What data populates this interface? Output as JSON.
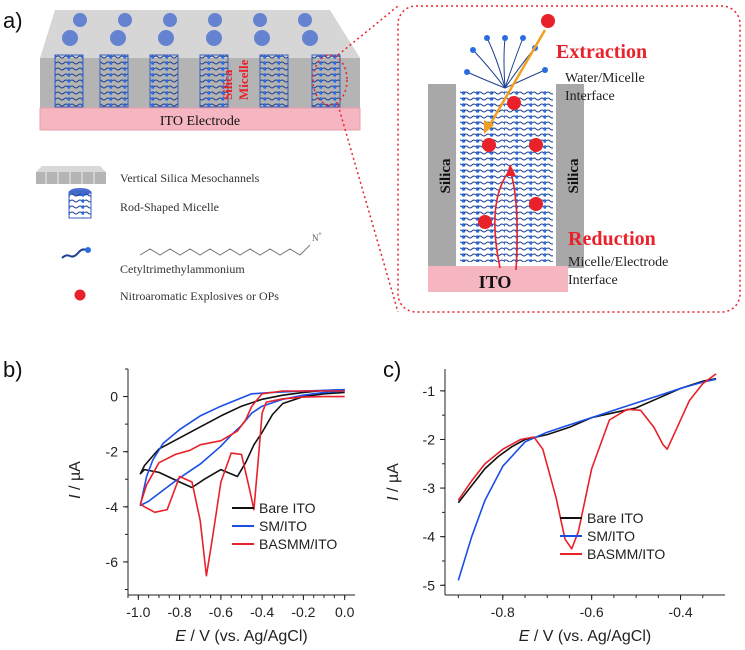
{
  "panel_a": {
    "letter": "a)",
    "schematic_labels": {
      "electrode": "ITO Electrode",
      "silica": "Silica",
      "micelle": "Micelle"
    },
    "legend": [
      {
        "icon": "silica-mesochannel-icon",
        "label": "Vertical Silica Mesochannels"
      },
      {
        "icon": "rod-micelle-icon",
        "label": "Rod-Shaped Micelle"
      },
      {
        "icon": "ctab-molecule-icon",
        "label": "Cetyltrimethylammonium"
      },
      {
        "icon": "red-dot-icon",
        "label": "Nitroaromatic Explosives or OPs"
      }
    ],
    "zoom": {
      "extraction": "Extraction",
      "water_interface_1": "Water/Micelle",
      "water_interface_2": "Interface",
      "reduction": "Reduction",
      "electrode_interface_1": "Micelle/Electrode",
      "electrode_interface_2": "Interface",
      "silica_left": "Silica",
      "silica_right": "Silica",
      "ito": "ITO"
    },
    "colors": {
      "accent_red": "#e8212a",
      "pink": "#f8b9c2",
      "silica_gray": "#a8a8a8",
      "chain_blue": "#1f3f8f",
      "arrow_orange": "#f0a020"
    }
  },
  "chart_data": [
    {
      "panel": "b)",
      "type": "line",
      "xlabel_italic": "E",
      "xlabel_rest": " / V (vs. Ag/AgCl)",
      "ylabel_italic": "I",
      "ylabel_rest": " / µA",
      "xlim": [
        -1.05,
        0.05
      ],
      "ylim": [
        -7.2,
        1.0
      ],
      "xticks": [
        -1.0,
        -0.8,
        -0.6,
        -0.4,
        -0.2,
        0.0
      ],
      "xtick_labels": [
        "-1.0",
        "-0.8",
        "-0.6",
        "-0.4",
        "-0.2",
        "0.0"
      ],
      "yticks": [
        0,
        -2,
        -4,
        -6
      ],
      "ytick_labels": [
        "0",
        "-2",
        "-4",
        "-6"
      ],
      "series": [
        {
          "name": "Bare ITO",
          "color": "#111111",
          "points": [
            [
              0.0,
              0.25
            ],
            [
              -0.1,
              0.22
            ],
            [
              -0.2,
              0.15
            ],
            [
              -0.3,
              0.05
            ],
            [
              -0.4,
              -0.1
            ],
            [
              -0.5,
              -0.35
            ],
            [
              -0.6,
              -0.7
            ],
            [
              -0.7,
              -1.1
            ],
            [
              -0.8,
              -1.5
            ],
            [
              -0.9,
              -1.9
            ],
            [
              -0.97,
              -2.5
            ],
            [
              -0.99,
              -2.8
            ],
            [
              -0.97,
              -2.65
            ],
            [
              -0.9,
              -2.75
            ],
            [
              -0.8,
              -3.1
            ],
            [
              -0.74,
              -3.3
            ],
            [
              -0.68,
              -3.0
            ],
            [
              -0.6,
              -2.65
            ],
            [
              -0.52,
              -2.9
            ],
            [
              -0.48,
              -2.4
            ],
            [
              -0.44,
              -1.75
            ],
            [
              -0.4,
              -1.3
            ],
            [
              -0.35,
              -0.65
            ],
            [
              -0.3,
              -0.25
            ],
            [
              -0.2,
              0.0
            ],
            [
              -0.1,
              0.1
            ],
            [
              0.0,
              0.15
            ]
          ]
        },
        {
          "name": "SM/ITO",
          "color": "#1a4ee6",
          "points": [
            [
              0.0,
              0.25
            ],
            [
              -0.2,
              0.2
            ],
            [
              -0.35,
              0.15
            ],
            [
              -0.45,
              0.1
            ],
            [
              -0.5,
              -0.05
            ],
            [
              -0.6,
              -0.35
            ],
            [
              -0.7,
              -0.7
            ],
            [
              -0.8,
              -1.2
            ],
            [
              -0.88,
              -1.7
            ],
            [
              -0.93,
              -2.3
            ],
            [
              -0.96,
              -2.9
            ],
            [
              -0.98,
              -3.6
            ],
            [
              -0.99,
              -3.95
            ],
            [
              -0.95,
              -3.8
            ],
            [
              -0.88,
              -3.4
            ],
            [
              -0.8,
              -2.95
            ],
            [
              -0.7,
              -2.45
            ],
            [
              -0.6,
              -1.8
            ],
            [
              -0.55,
              -1.4
            ],
            [
              -0.5,
              -1.05
            ],
            [
              -0.45,
              -0.6
            ],
            [
              -0.4,
              -0.35
            ],
            [
              -0.3,
              -0.1
            ],
            [
              -0.2,
              0.05
            ],
            [
              -0.1,
              0.15
            ],
            [
              0.0,
              0.2
            ]
          ]
        },
        {
          "name": "BASMM/ITO",
          "color": "#e8212a",
          "points": [
            [
              0.0,
              0.0
            ],
            [
              -0.1,
              0.0
            ],
            [
              -0.2,
              -0.02
            ],
            [
              -0.3,
              -0.08
            ],
            [
              -0.38,
              -0.2
            ],
            [
              -0.4,
              -0.6
            ],
            [
              -0.42,
              -2.4
            ],
            [
              -0.44,
              -4.1
            ],
            [
              -0.46,
              -3.4
            ],
            [
              -0.5,
              -2.1
            ],
            [
              -0.55,
              -2.05
            ],
            [
              -0.6,
              -3.1
            ],
            [
              -0.64,
              -5.1
            ],
            [
              -0.67,
              -6.5
            ],
            [
              -0.7,
              -4.5
            ],
            [
              -0.74,
              -3.1
            ],
            [
              -0.8,
              -2.9
            ],
            [
              -0.86,
              -4.1
            ],
            [
              -0.92,
              -4.2
            ],
            [
              -0.97,
              -4.0
            ],
            [
              -0.99,
              -3.9
            ],
            [
              -0.96,
              -3.2
            ],
            [
              -0.9,
              -2.4
            ],
            [
              -0.82,
              -2.1
            ],
            [
              -0.75,
              -1.95
            ],
            [
              -0.7,
              -1.75
            ],
            [
              -0.6,
              -1.6
            ],
            [
              -0.52,
              -1.25
            ],
            [
              -0.48,
              -0.85
            ],
            [
              -0.45,
              -0.35
            ],
            [
              -0.4,
              0.1
            ],
            [
              -0.3,
              0.2
            ],
            [
              -0.2,
              0.2
            ],
            [
              -0.1,
              0.2
            ],
            [
              0.0,
              0.2
            ]
          ]
        }
      ]
    },
    {
      "panel": "c)",
      "type": "line",
      "xlabel_italic": "E",
      "xlabel_rest": " / V (vs. Ag/AgCl)",
      "ylabel_italic": "I",
      "ylabel_rest": " / µA",
      "xlim": [
        -0.93,
        -0.3
      ],
      "ylim": [
        -5.2,
        -0.55
      ],
      "xticks": [
        -0.8,
        -0.6,
        -0.4
      ],
      "xtick_labels": [
        "-0.8",
        "-0.6",
        "-0.4"
      ],
      "yticks": [
        -1,
        -2,
        -3,
        -4,
        -5
      ],
      "ytick_labels": [
        "-1",
        "-2",
        "-3",
        "-4",
        "-5"
      ],
      "series": [
        {
          "name": "Bare ITO",
          "color": "#111111",
          "points": [
            [
              -0.9,
              -3.3
            ],
            [
              -0.87,
              -2.95
            ],
            [
              -0.84,
              -2.6
            ],
            [
              -0.81,
              -2.35
            ],
            [
              -0.78,
              -2.15
            ],
            [
              -0.75,
              -2.0
            ],
            [
              -0.7,
              -1.9
            ],
            [
              -0.65,
              -1.75
            ],
            [
              -0.6,
              -1.55
            ],
            [
              -0.55,
              -1.45
            ],
            [
              -0.5,
              -1.35
            ],
            [
              -0.45,
              -1.15
            ],
            [
              -0.4,
              -0.95
            ],
            [
              -0.35,
              -0.8
            ],
            [
              -0.32,
              -0.75
            ]
          ]
        },
        {
          "name": "SM/ITO",
          "color": "#1a4ee6",
          "points": [
            [
              -0.9,
              -4.9
            ],
            [
              -0.87,
              -4.0
            ],
            [
              -0.84,
              -3.25
            ],
            [
              -0.8,
              -2.55
            ],
            [
              -0.75,
              -2.05
            ],
            [
              -0.7,
              -1.85
            ],
            [
              -0.65,
              -1.7
            ],
            [
              -0.6,
              -1.55
            ],
            [
              -0.55,
              -1.4
            ],
            [
              -0.5,
              -1.25
            ],
            [
              -0.45,
              -1.1
            ],
            [
              -0.4,
              -0.95
            ],
            [
              -0.35,
              -0.82
            ],
            [
              -0.32,
              -0.76
            ]
          ]
        },
        {
          "name": "BASMM/ITO",
          "color": "#e8212a",
          "points": [
            [
              -0.9,
              -3.25
            ],
            [
              -0.87,
              -2.85
            ],
            [
              -0.84,
              -2.5
            ],
            [
              -0.8,
              -2.2
            ],
            [
              -0.76,
              -2.0
            ],
            [
              -0.73,
              -1.95
            ],
            [
              -0.71,
              -2.2
            ],
            [
              -0.68,
              -3.2
            ],
            [
              -0.66,
              -4.05
            ],
            [
              -0.645,
              -4.25
            ],
            [
              -0.63,
              -3.9
            ],
            [
              -0.6,
              -2.6
            ],
            [
              -0.56,
              -1.6
            ],
            [
              -0.52,
              -1.38
            ],
            [
              -0.49,
              -1.4
            ],
            [
              -0.46,
              -1.75
            ],
            [
              -0.44,
              -2.1
            ],
            [
              -0.43,
              -2.2
            ],
            [
              -0.41,
              -1.8
            ],
            [
              -0.38,
              -1.2
            ],
            [
              -0.35,
              -0.85
            ],
            [
              -0.32,
              -0.65
            ]
          ]
        }
      ]
    }
  ]
}
